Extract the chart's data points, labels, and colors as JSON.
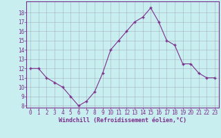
{
  "x": [
    0,
    1,
    2,
    3,
    4,
    5,
    6,
    7,
    8,
    9,
    10,
    11,
    12,
    13,
    14,
    15,
    16,
    17,
    18,
    19,
    20,
    21,
    22,
    23
  ],
  "y": [
    12,
    12,
    11,
    10.5,
    10,
    9,
    8,
    8.5,
    9.5,
    11.5,
    14,
    15,
    16,
    17,
    17.5,
    18.5,
    17,
    15,
    14.5,
    12.5,
    12.5,
    11.5,
    11,
    11
  ],
  "line_color": "#7b2d8b",
  "marker_color": "#7b2d8b",
  "bg_color": "#c8eef0",
  "grid_color": "#9999aa",
  "xlabel": "Windchill (Refroidissement éolien,°C)",
  "ylim": [
    7.8,
    19.2
  ],
  "xlim": [
    -0.5,
    23.5
  ],
  "yticks": [
    8,
    9,
    10,
    11,
    12,
    13,
    14,
    15,
    16,
    17,
    18
  ],
  "xticks": [
    0,
    1,
    2,
    3,
    4,
    5,
    6,
    7,
    8,
    9,
    10,
    11,
    12,
    13,
    14,
    15,
    16,
    17,
    18,
    19,
    20,
    21,
    22,
    23
  ],
  "label_color": "#7b2d8b",
  "tick_color": "#7b2d8b",
  "tick_font_size": 5.5,
  "xlabel_font_size": 6.0
}
